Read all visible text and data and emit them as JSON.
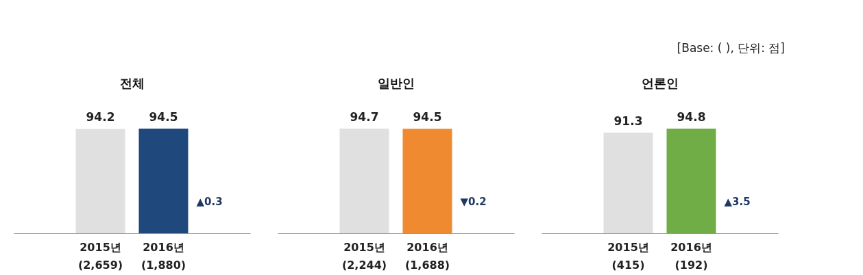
{
  "chart_data": [
    {
      "type": "bar",
      "title": "전체",
      "categories": [
        "2015년\n(2,659)",
        "2016년\n(1,880)"
      ],
      "values": [
        94.2,
        94.5
      ],
      "colors": [
        "#e0e0e0",
        "#1f497d"
      ],
      "data_labels": true,
      "tick_labels": "x",
      "grid": false,
      "annotations": [
        "▲0.3"
      ]
    },
    {
      "type": "bar",
      "title": "일반인",
      "categories": [
        "2015년\n(2,244)",
        "2016년\n(1,688)"
      ],
      "values": [
        94.7,
        94.5
      ],
      "colors": [
        "#e0e0e0",
        "#f08a31"
      ],
      "data_labels": true,
      "tick_labels": "x",
      "grid": false,
      "annotations": [
        "▼0.2"
      ]
    },
    {
      "type": "bar",
      "title": "언론인",
      "categories": [
        "2015년\n(415)",
        "2016년\n(192)"
      ],
      "values": [
        91.3,
        94.8
      ],
      "colors": [
        "#e0e0e0",
        "#70ad47"
      ],
      "data_labels": true,
      "tick_labels": "x",
      "grid": false,
      "annotations": [
        "▲3.5",
        "[Base: (   ), 단위: 점]"
      ]
    }
  ]
}
